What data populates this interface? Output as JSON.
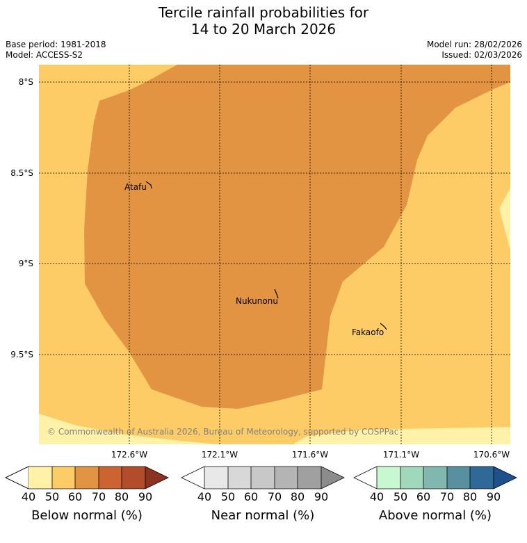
{
  "title": {
    "line1": "Tercile rainfall probabilities for",
    "line2": "14 to 20 March 2026"
  },
  "meta": {
    "base_period": "Base period: 1981-2018",
    "model": "Model: ACCESS-S2",
    "model_run": "Model run: 28/02/2026",
    "issued": "Issued: 02/03/2026"
  },
  "map": {
    "lat_labels": [
      "8°S",
      "8.5°S",
      "9°S",
      "9.5°S"
    ],
    "lon_labels": [
      "172.6°W",
      "172.1°W",
      "171.6°W",
      "171.1°W",
      "170.6°W"
    ],
    "places": [
      "Atafu",
      "Nukunonu",
      "Fakaofo"
    ],
    "copyright": "© Commonwealth of Australia 2026, Bureau of Meteorology, supported by COSPPac",
    "fill_colors": {
      "below_50": "#fff1a8",
      "below_60": "#fecc66",
      "below_70": "#e29443"
    }
  },
  "legends": [
    {
      "label": "Below normal (%)",
      "ticks": [
        "40",
        "50",
        "60",
        "70",
        "80",
        "90"
      ],
      "colors": [
        "#ffffff",
        "#fff1a8",
        "#fecc66",
        "#e29443",
        "#cc6432",
        "#b24c2b",
        "#8c3220"
      ]
    },
    {
      "label": "Near normal (%)",
      "ticks": [
        "40",
        "50",
        "60",
        "70",
        "80",
        "90"
      ],
      "colors": [
        "#ffffff",
        "#e8e8e8",
        "#d8d8d8",
        "#c8c8c8",
        "#b4b4b4",
        "#a0a0a0",
        "#8c8c8c"
      ]
    },
    {
      "label": "Above normal (%)",
      "ticks": [
        "40",
        "50",
        "60",
        "70",
        "80",
        "90"
      ],
      "colors": [
        "#ffffff",
        "#c8f8d0",
        "#a0d8bc",
        "#80b8b0",
        "#5890a0",
        "#306898",
        "#1e508c"
      ]
    }
  ]
}
